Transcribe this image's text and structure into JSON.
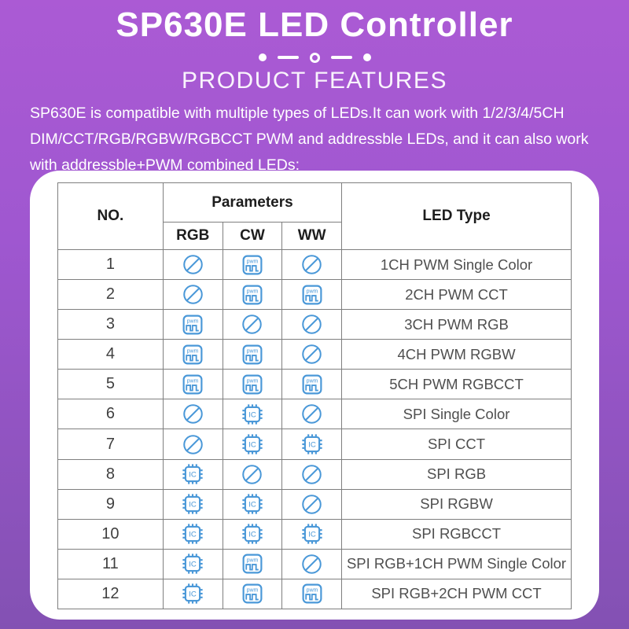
{
  "header": {
    "title": "SP630E LED Controller",
    "section_title": "PRODUCT FEATURES",
    "description_lines": [
      "SP630E is compatible with multiple types of LEDs.It can work with 1/2/3/4/5CH",
      "DIM/CCT/RGB/RGBW/RGBCCT PWM and addressble LEDs, and it can also work",
      "with addressble+PWM combined LEDs:"
    ]
  },
  "colors": {
    "background_top": "#ab5ad4",
    "background_bottom": "#8351b3",
    "panel_background": "#ffffff",
    "icon_blue": "#4a98d8",
    "table_border": "#7f7f7f",
    "header_text": "#1d1d1d",
    "cell_text": "#4f4f4f"
  },
  "icons": {
    "pwm_text": "pwm",
    "ic_text": "IC",
    "legend": {
      "pwm": "pwm-icon",
      "ic": "ic-chip-icon",
      "none": "not-supported-icon"
    }
  },
  "table": {
    "col_no": "NO.",
    "col_parameters": "Parameters",
    "col_led_type": "LED Type",
    "sub_columns": [
      "RGB",
      "CW",
      "WW"
    ],
    "rows": [
      {
        "no": "1",
        "rgb": "none",
        "cw": "pwm",
        "ww": "none",
        "led_type": "1CH PWM Single Color"
      },
      {
        "no": "2",
        "rgb": "none",
        "cw": "pwm",
        "ww": "pwm",
        "led_type": "2CH PWM CCT"
      },
      {
        "no": "3",
        "rgb": "pwm",
        "cw": "none",
        "ww": "none",
        "led_type": "3CH PWM RGB"
      },
      {
        "no": "4",
        "rgb": "pwm",
        "cw": "pwm",
        "ww": "none",
        "led_type": "4CH PWM RGBW"
      },
      {
        "no": "5",
        "rgb": "pwm",
        "cw": "pwm",
        "ww": "pwm",
        "led_type": "5CH PWM RGBCCT"
      },
      {
        "no": "6",
        "rgb": "none",
        "cw": "ic",
        "ww": "none",
        "led_type": "SPI Single Color"
      },
      {
        "no": "7",
        "rgb": "none",
        "cw": "ic",
        "ww": "ic",
        "led_type": "SPI CCT"
      },
      {
        "no": "8",
        "rgb": "ic",
        "cw": "none",
        "ww": "none",
        "led_type": "SPI RGB"
      },
      {
        "no": "9",
        "rgb": "ic",
        "cw": "ic",
        "ww": "none",
        "led_type": "SPI RGBW"
      },
      {
        "no": "10",
        "rgb": "ic",
        "cw": "ic",
        "ww": "ic",
        "led_type": "SPI RGBCCT"
      },
      {
        "no": "11",
        "rgb": "ic",
        "cw": "pwm",
        "ww": "none",
        "led_type": "SPI RGB+1CH PWM Single Color"
      },
      {
        "no": "12",
        "rgb": "ic",
        "cw": "pwm",
        "ww": "pwm",
        "led_type": "SPI RGB+2CH PWM CCT"
      }
    ]
  }
}
